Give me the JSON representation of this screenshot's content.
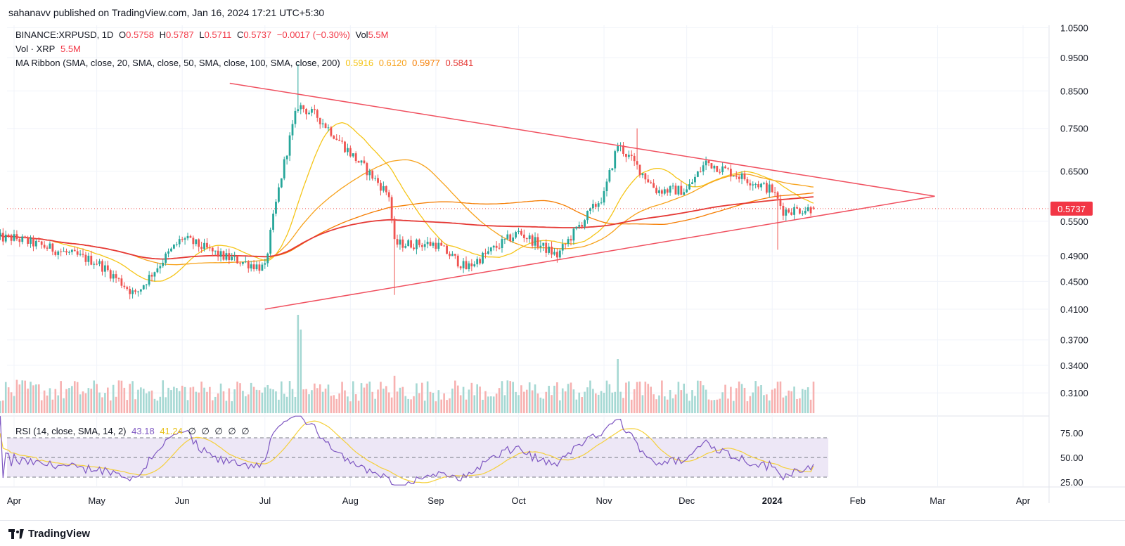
{
  "header": {
    "published": "sahanavv published on TradingView.com, Jan 16, 2024 17:21 UTC+5:30"
  },
  "legend": {
    "symbol": "BINANCE:XRPUSD, 1D",
    "ohlc": {
      "o_label": "O",
      "o": "0.5758",
      "h_label": "H",
      "h": "0.5787",
      "l_label": "L",
      "l": "0.5711",
      "c_label": "C",
      "c": "0.5737",
      "change": "−0.0017 (−0.30%)",
      "vol_label": "Vol",
      "vol": "5.5M"
    },
    "volume_line": {
      "label": "Vol · XRP",
      "value": "5.5M"
    },
    "ma_ribbon": {
      "label": "MA Ribbon (SMA, close, 20, SMA, close, 50, SMA, close, 100, SMA, close, 200)",
      "values": [
        "0.5916",
        "0.6120",
        "0.5977",
        "0.5841"
      ]
    },
    "rsi": {
      "label": "RSI (14, close, SMA, 14, 2)",
      "value": "43.18",
      "signal": "41.24",
      "empty": [
        "∅",
        "∅",
        "∅",
        "∅",
        "∅"
      ]
    }
  },
  "price_axis": {
    "ticks": [
      "1.0500",
      "0.9500",
      "0.8500",
      "0.7500",
      "0.6500",
      "0.5500",
      "0.4900",
      "0.4500",
      "0.4100",
      "0.3700",
      "0.3400",
      "0.3100"
    ],
    "last_price": "0.5737"
  },
  "rsi_axis": {
    "ticks": [
      "75.00",
      "50.00",
      "25.00"
    ]
  },
  "time_axis": {
    "ticks": [
      "Apr",
      "May",
      "Jun",
      "Jul",
      "Aug",
      "Sep",
      "Oct",
      "Nov",
      "Dec",
      "2024",
      "Feb",
      "Mar",
      "Apr"
    ]
  },
  "footer": {
    "brand": "TradingView"
  },
  "colors": {
    "up": "#26a69a",
    "down": "#ef5350",
    "ma20": "#f5c518",
    "ma50": "#f7a21b",
    "ma100": "#f57c00",
    "ma200": "#e53935",
    "triangle": "#f0505f",
    "rsi": "#7e57c2",
    "rsi_ma": "#f5d03b",
    "rsi_band": "#ede7f6"
  },
  "chart_data": {
    "type": "candlestick",
    "symbol": "BINANCE:XRPUSD",
    "interval": "1D",
    "time_range": [
      "2023-04-01",
      "2024-01-16"
    ],
    "price_scale": "log",
    "price_axis_range": [
      0.29,
      1.07
    ],
    "last": {
      "open": 0.5758,
      "high": 0.5787,
      "low": 0.5711,
      "close": 0.5737
    },
    "monthly_closes": [
      {
        "date": "2023-04-01",
        "close": 0.52
      },
      {
        "date": "2023-05-01",
        "close": 0.48
      },
      {
        "date": "2023-05-15",
        "close": 0.43
      },
      {
        "date": "2023-06-01",
        "close": 0.52
      },
      {
        "date": "2023-06-15",
        "close": 0.49
      },
      {
        "date": "2023-07-01",
        "close": 0.47
      },
      {
        "date": "2023-07-13",
        "close": 0.81
      },
      {
        "date": "2023-07-20",
        "close": 0.78
      },
      {
        "date": "2023-08-01",
        "close": 0.69
      },
      {
        "date": "2023-08-15",
        "close": 0.6
      },
      {
        "date": "2023-08-17",
        "close": 0.51
      },
      {
        "date": "2023-09-01",
        "close": 0.51
      },
      {
        "date": "2023-09-12",
        "close": 0.47
      },
      {
        "date": "2023-10-01",
        "close": 0.53
      },
      {
        "date": "2023-10-15",
        "close": 0.49
      },
      {
        "date": "2023-11-01",
        "close": 0.6
      },
      {
        "date": "2023-11-06",
        "close": 0.71
      },
      {
        "date": "2023-11-20",
        "close": 0.61
      },
      {
        "date": "2023-12-01",
        "close": 0.61
      },
      {
        "date": "2023-12-08",
        "close": 0.67
      },
      {
        "date": "2024-01-01",
        "close": 0.61
      },
      {
        "date": "2024-01-05",
        "close": 0.57
      },
      {
        "date": "2024-01-16",
        "close": 0.5737
      }
    ],
    "ma_ribbon_last": {
      "sma20": 0.5916,
      "sma50": 0.612,
      "sma100": 0.5977,
      "sma200": 0.5841
    },
    "triangle": {
      "upper": [
        {
          "date": "2023-07-01",
          "price": 0.87
        },
        {
          "date": "2024-02-29",
          "price": 0.598
        }
      ],
      "lower": [
        {
          "date": "2023-07-01",
          "price": 0.41
        },
        {
          "date": "2024-02-29",
          "price": 0.598
        }
      ]
    },
    "rsi": {
      "value": 43.18,
      "signal": 41.24,
      "bands": [
        30,
        50,
        70
      ]
    },
    "volume_last": "5.5M"
  }
}
